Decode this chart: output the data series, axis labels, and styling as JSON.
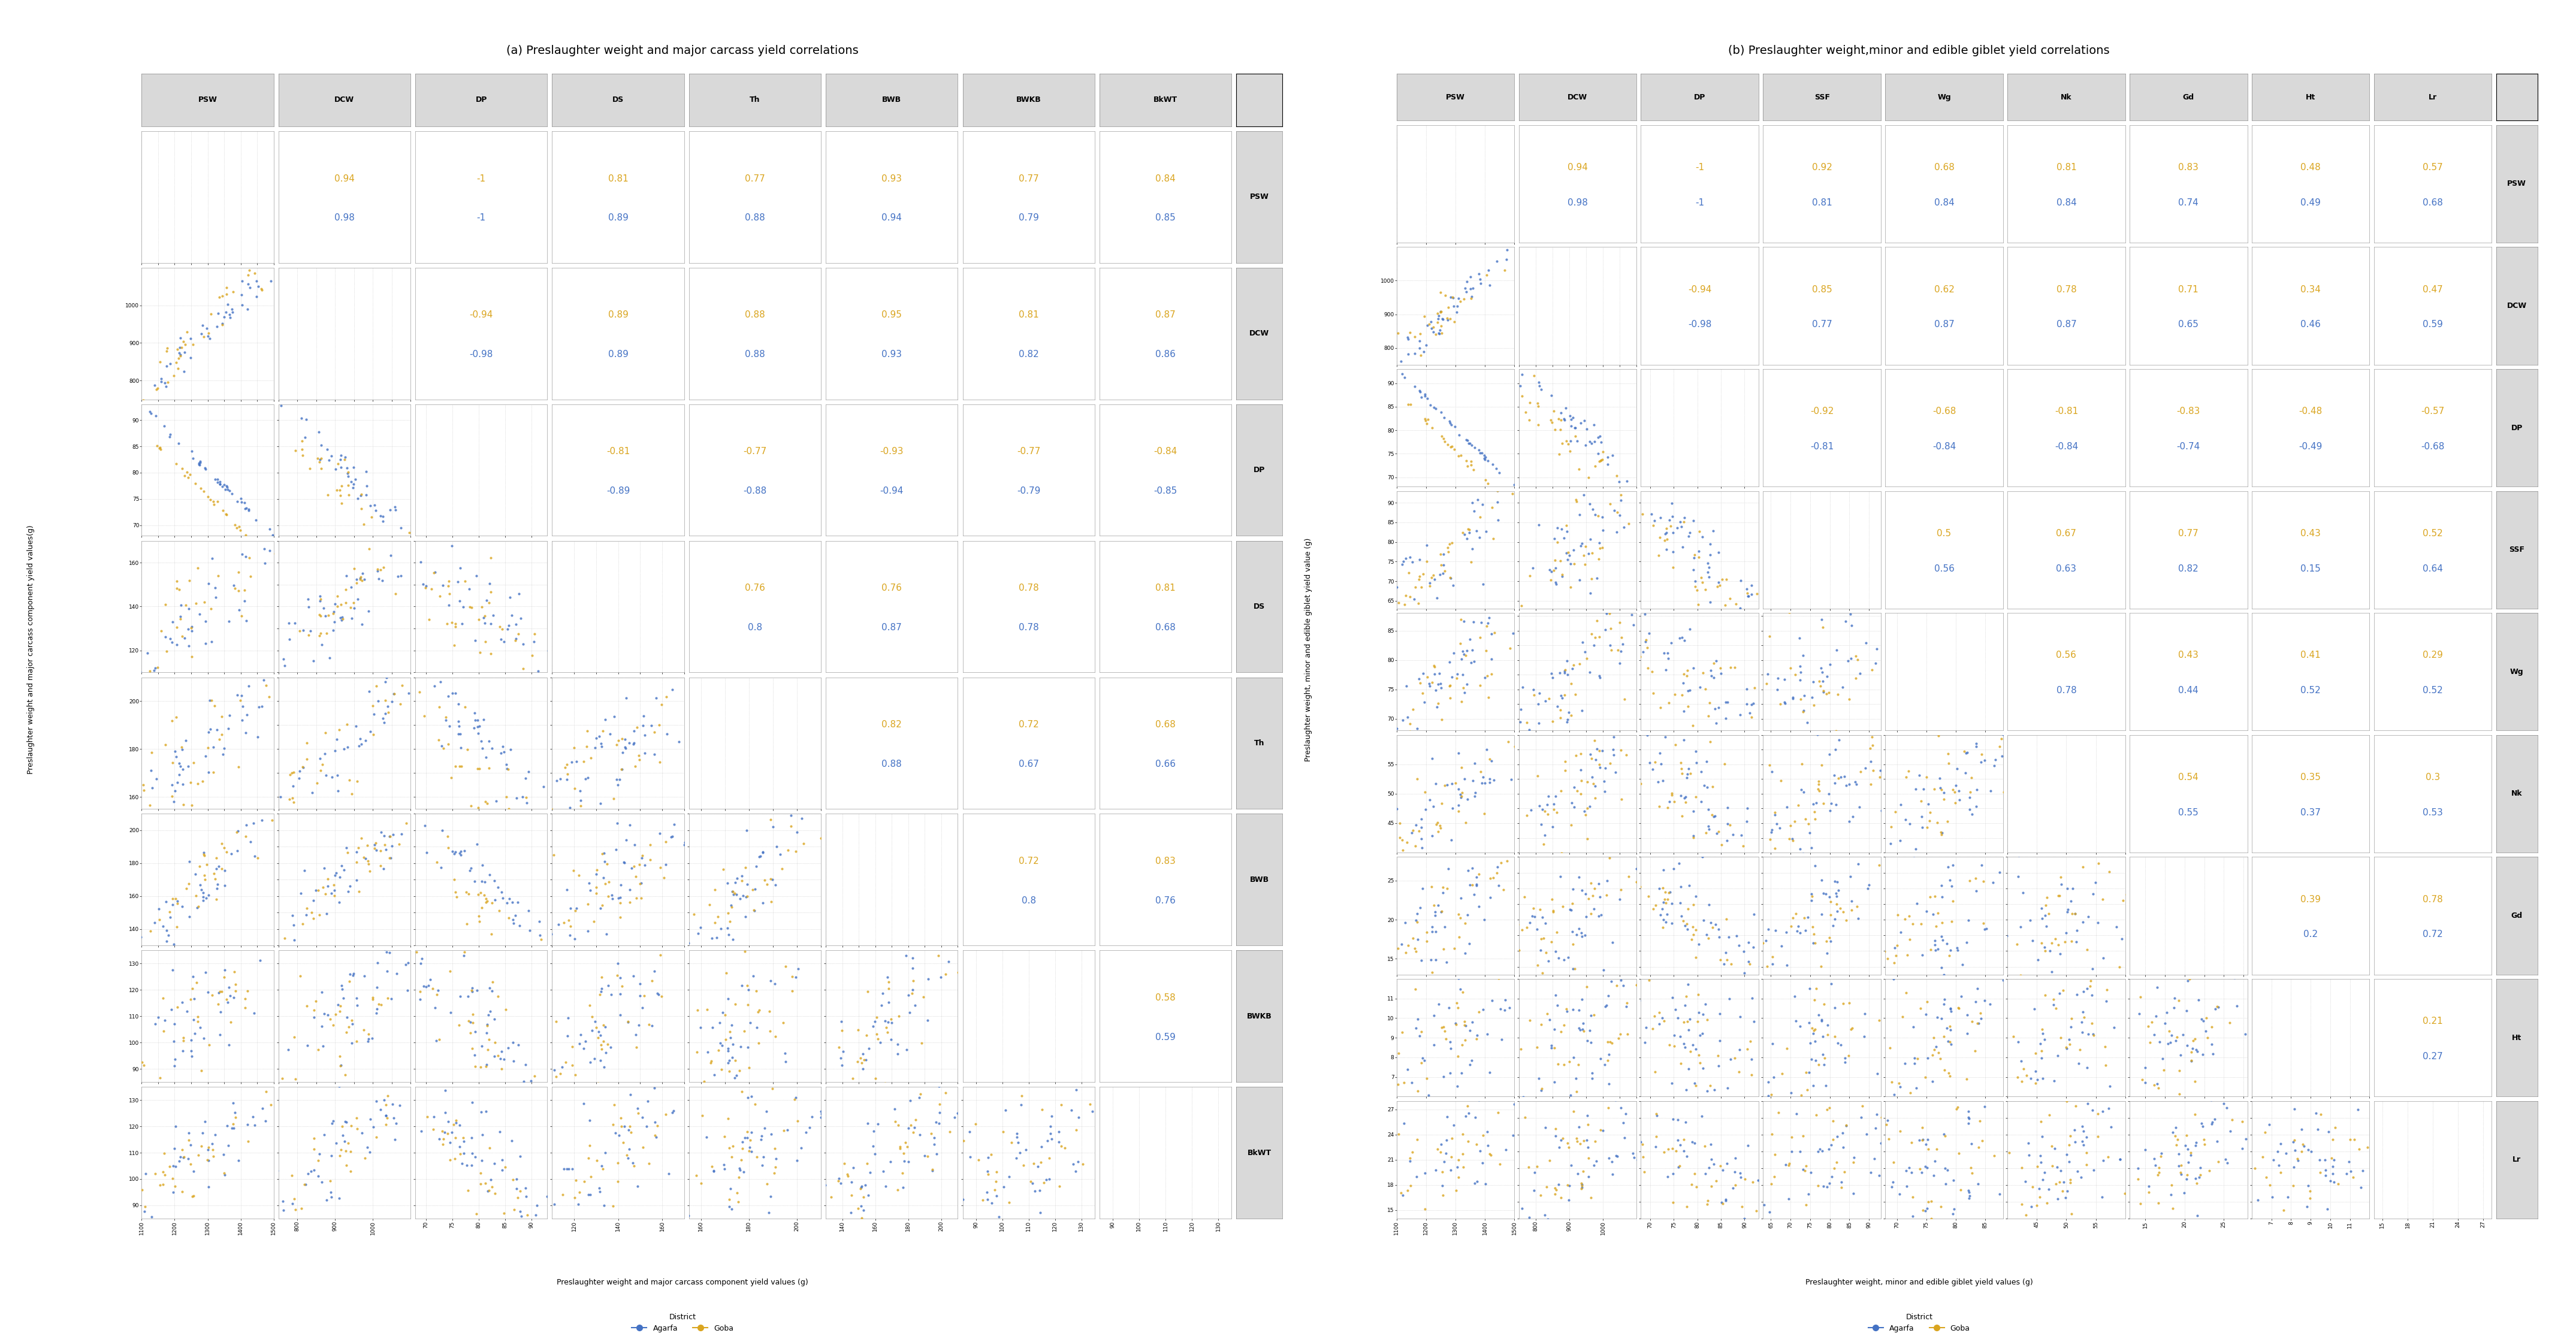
{
  "panel_a": {
    "title": "(a) Preslaughter weight and major carcass yield correlations",
    "xlabel": "Preslaughter weight and major carcass component yield values (g)",
    "ylabel": "Preslaughter weight and major carcass component yield values(g)",
    "variables": [
      "PSW",
      "DCW",
      "DP",
      "DS",
      "Th",
      "BWB",
      "BWKB",
      "BkWT"
    ],
    "correlations_gold": [
      [
        null,
        0.94,
        -1,
        0.81,
        0.77,
        0.93,
        0.77,
        0.84
      ],
      [
        0.94,
        null,
        -0.94,
        0.89,
        0.88,
        0.95,
        0.81,
        0.87
      ],
      [
        -1,
        -0.94,
        null,
        -0.81,
        -0.77,
        -0.93,
        -0.77,
        -0.84
      ],
      [
        0.81,
        0.89,
        -0.81,
        null,
        0.76,
        0.76,
        0.78,
        0.81
      ],
      [
        0.77,
        0.88,
        -0.77,
        0.76,
        null,
        0.82,
        0.72,
        0.68
      ],
      [
        0.93,
        0.95,
        -0.93,
        0.76,
        0.82,
        null,
        0.72,
        0.83
      ],
      [
        0.77,
        0.81,
        -0.77,
        0.78,
        0.72,
        0.72,
        null,
        0.58
      ],
      [
        0.84,
        0.87,
        -0.84,
        0.81,
        0.68,
        0.83,
        0.58,
        null
      ]
    ],
    "correlations_blue": [
      [
        null,
        0.98,
        -1,
        0.89,
        0.88,
        0.94,
        0.79,
        0.85
      ],
      [
        0.98,
        null,
        -0.98,
        0.89,
        0.88,
        0.93,
        0.82,
        0.86
      ],
      [
        -1,
        -0.98,
        null,
        -0.89,
        -0.88,
        -0.94,
        -0.79,
        -0.85
      ],
      [
        0.89,
        0.89,
        -0.89,
        null,
        0.8,
        0.87,
        0.78,
        0.68
      ],
      [
        0.88,
        0.88,
        -0.88,
        0.8,
        null,
        0.88,
        0.67,
        0.66
      ],
      [
        0.94,
        0.93,
        -0.94,
        0.87,
        0.88,
        null,
        0.8,
        0.76
      ],
      [
        0.79,
        0.82,
        -0.79,
        0.78,
        0.67,
        0.8,
        null,
        0.59
      ],
      [
        0.85,
        0.86,
        -0.85,
        0.68,
        0.66,
        0.76,
        0.59,
        null
      ]
    ],
    "ranges": {
      "PSW": [
        1100,
        1500
      ],
      "DCW": [
        750,
        1100
      ],
      "DP": [
        68,
        93
      ],
      "DS": [
        110,
        170
      ],
      "Th": [
        155,
        210
      ],
      "BWB": [
        130,
        210
      ],
      "BWKB": [
        85,
        135
      ],
      "BkWT": [
        85,
        135
      ]
    },
    "xticks": {
      "PSW": [
        1100,
        1200,
        1300,
        1400,
        1500
      ],
      "DCW": [
        800,
        900,
        1000
      ],
      "DP": [
        70,
        75,
        80,
        85,
        90
      ],
      "DS": [
        120,
        140,
        160
      ],
      "Th": [
        160,
        180,
        200
      ],
      "BWB": [
        140,
        160,
        180,
        200
      ],
      "BWKB": [
        90,
        100,
        110,
        120,
        130
      ],
      "BkWT": [
        90,
        100,
        110,
        120,
        130
      ]
    },
    "yticks": {
      "PSW": [
        1200,
        1300,
        1400,
        1500
      ],
      "DCW": [
        800,
        900,
        1000
      ],
      "DP": [
        70,
        75,
        80,
        85,
        90
      ],
      "DS": [
        120,
        140,
        160
      ],
      "Th": [
        160,
        180,
        200
      ],
      "BWB": [
        140,
        160,
        180,
        200
      ],
      "BWKB": [
        90,
        100,
        110,
        120,
        130
      ],
      "BkWT": [
        90,
        100,
        110,
        120,
        130
      ]
    }
  },
  "panel_b": {
    "title": "(b) Preslaughter weight,minor and edible giblet yield correlations",
    "xlabel": "Preslaughter weight, minor and edible giblet yield values (g)",
    "ylabel": "Preslaughter weight, minor and edible giblet yield value (g)",
    "variables": [
      "PSW",
      "DCW",
      "DP",
      "SSF",
      "Wg",
      "Nk",
      "Gd",
      "Ht",
      "Lr"
    ],
    "correlations_gold": [
      [
        null,
        0.94,
        -1,
        0.92,
        0.68,
        0.81,
        0.83,
        0.48,
        0.57
      ],
      [
        0.94,
        null,
        -0.94,
        0.85,
        0.62,
        0.78,
        0.71,
        0.34,
        0.47
      ],
      [
        -1,
        -0.94,
        null,
        -0.92,
        -0.68,
        -0.81,
        -0.83,
        -0.48,
        -0.57
      ],
      [
        0.92,
        0.85,
        -0.92,
        null,
        0.5,
        0.67,
        0.77,
        0.43,
        0.52
      ],
      [
        0.68,
        0.62,
        -0.68,
        0.5,
        null,
        0.56,
        0.43,
        0.41,
        0.29
      ],
      [
        0.81,
        0.78,
        -0.81,
        0.67,
        0.56,
        null,
        0.54,
        0.35,
        0.3
      ],
      [
        0.83,
        0.71,
        -0.83,
        0.77,
        0.43,
        0.54,
        null,
        0.39,
        0.78
      ],
      [
        0.48,
        0.34,
        -0.48,
        0.43,
        0.41,
        0.35,
        0.39,
        null,
        0.21
      ],
      [
        0.57,
        0.47,
        -0.57,
        0.52,
        0.29,
        0.3,
        0.78,
        0.21,
        null
      ]
    ],
    "correlations_blue": [
      [
        null,
        0.98,
        -1,
        0.81,
        0.84,
        0.84,
        0.74,
        0.49,
        0.68
      ],
      [
        0.98,
        null,
        -0.98,
        0.77,
        0.87,
        0.87,
        0.65,
        0.46,
        0.59
      ],
      [
        -1,
        -0.98,
        null,
        -0.81,
        -0.84,
        -0.84,
        -0.74,
        -0.49,
        -0.68
      ],
      [
        0.81,
        0.77,
        -0.81,
        null,
        0.56,
        0.63,
        0.82,
        0.15,
        0.64
      ],
      [
        0.84,
        0.87,
        -0.84,
        0.56,
        null,
        0.78,
        0.44,
        0.52,
        0.52
      ],
      [
        0.84,
        0.87,
        -0.84,
        0.63,
        0.78,
        null,
        0.55,
        0.37,
        0.53
      ],
      [
        0.74,
        0.65,
        -0.74,
        0.82,
        0.44,
        0.55,
        null,
        0.2,
        0.72
      ],
      [
        0.49,
        0.46,
        -0.49,
        0.15,
        0.52,
        0.37,
        0.2,
        null,
        0.27
      ],
      [
        0.68,
        0.59,
        -0.68,
        0.64,
        0.52,
        0.53,
        0.72,
        0.27,
        null
      ]
    ],
    "ranges": {
      "PSW": [
        1100,
        1500
      ],
      "DCW": [
        750,
        1100
      ],
      "DP": [
        68,
        93
      ],
      "SSF": [
        63,
        93
      ],
      "Wg": [
        68,
        88
      ],
      "Nk": [
        40,
        60
      ],
      "Gd": [
        13,
        28
      ],
      "Ht": [
        6,
        12
      ],
      "Lr": [
        14,
        28
      ]
    },
    "xticks": {
      "PSW": [
        1100,
        1200,
        1300,
        1400,
        1500
      ],
      "DCW": [
        800,
        900,
        1000
      ],
      "DP": [
        70,
        75,
        80,
        85,
        90
      ],
      "SSF": [
        65,
        70,
        75,
        80,
        85,
        90
      ],
      "Wg": [
        70,
        75,
        80,
        85
      ],
      "Nk": [
        45,
        50,
        55
      ],
      "Gd": [
        15,
        20,
        25
      ],
      "Ht": [
        7,
        8,
        9,
        10,
        11
      ],
      "Lr": [
        15,
        18,
        21,
        24,
        27
      ]
    },
    "yticks": {
      "PSW": [
        1200,
        1300,
        1400,
        1500
      ],
      "DCW": [
        800,
        900,
        1000
      ],
      "DP": [
        70,
        75,
        80,
        85,
        90
      ],
      "SSF": [
        65,
        70,
        75,
        80,
        85,
        90
      ],
      "Wg": [
        70,
        75,
        80,
        85
      ],
      "Nk": [
        45,
        50,
        55
      ],
      "Gd": [
        15,
        20,
        25
      ],
      "Ht": [
        7,
        8,
        9,
        10,
        11
      ],
      "Lr": [
        15,
        18,
        21,
        24,
        27
      ]
    }
  },
  "color_gold": "#DAA520",
  "color_blue": "#4472C4",
  "color_bg_header": "#D9D9D9",
  "title_fontsize": 14,
  "label_fontsize": 9,
  "corr_fontsize": 11,
  "tick_fontsize": 6.5,
  "header_fontsize": 9
}
